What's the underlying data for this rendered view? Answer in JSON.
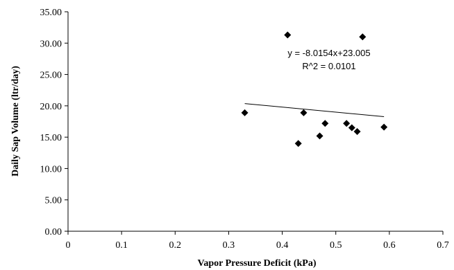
{
  "chart_data": {
    "type": "scatter",
    "xlabel": "Vapor Pressure Deficit (kPa)",
    "ylabel": "Daily Sap Volume (ltr/day)",
    "xlim": [
      0,
      0.7
    ],
    "ylim": [
      0,
      35
    ],
    "x_ticks": [
      "0",
      "0.1",
      "0.2",
      "0.3",
      "0.4",
      "0.5",
      "0.6",
      "0.7"
    ],
    "y_ticks": [
      "0.00",
      "5.00",
      "10.00",
      "15.00",
      "20.00",
      "25.00",
      "30.00",
      "35.00"
    ],
    "grid": false,
    "marker": "diamond",
    "marker_color": "#000000",
    "points": [
      {
        "x": 0.33,
        "y": 18.9
      },
      {
        "x": 0.41,
        "y": 31.3
      },
      {
        "x": 0.43,
        "y": 14.0
      },
      {
        "x": 0.44,
        "y": 18.9
      },
      {
        "x": 0.47,
        "y": 15.2
      },
      {
        "x": 0.48,
        "y": 17.2
      },
      {
        "x": 0.52,
        "y": 17.2
      },
      {
        "x": 0.53,
        "y": 16.5
      },
      {
        "x": 0.54,
        "y": 15.9
      },
      {
        "x": 0.55,
        "y": 31.0
      },
      {
        "x": 0.59,
        "y": 16.6
      }
    ],
    "trendline": {
      "slope": -8.0154,
      "intercept": 23.005,
      "x_range": [
        0.33,
        0.59
      ],
      "equation_text": "y = -8.0154x+23.005",
      "r2_text": "R^2 = 0.0101"
    }
  }
}
